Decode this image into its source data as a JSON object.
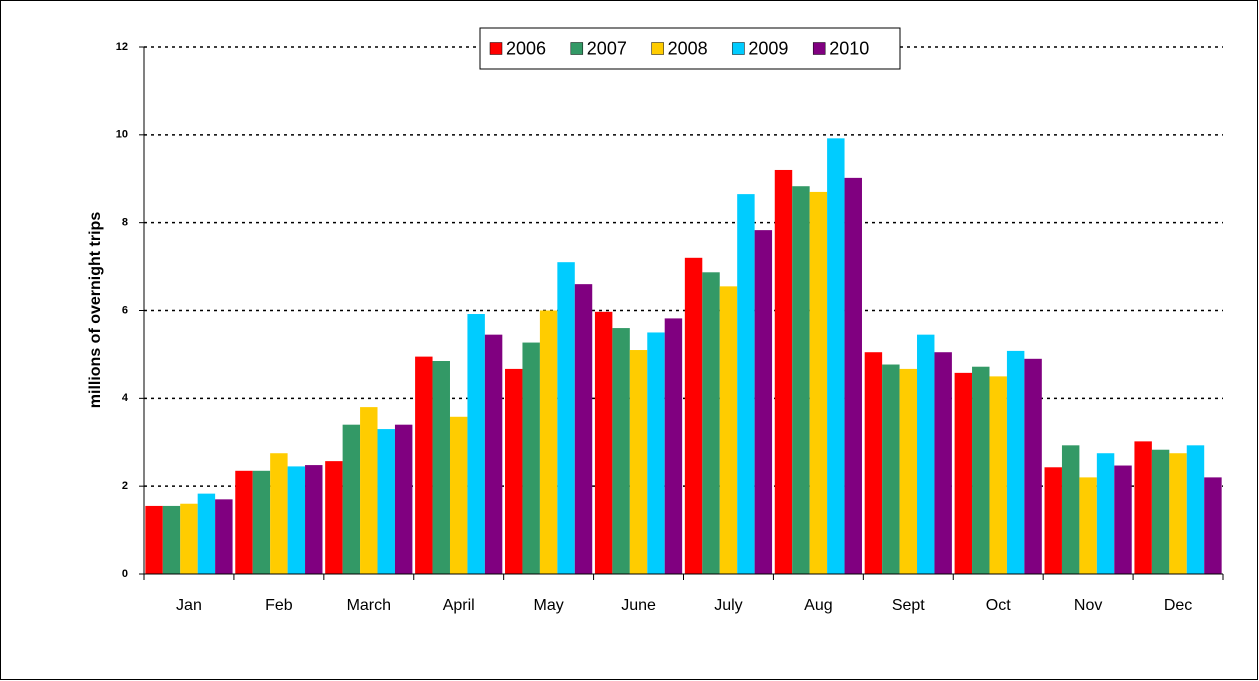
{
  "chart_data": {
    "type": "bar",
    "y_label": "millions of overnight trips",
    "categories": [
      "Jan",
      "Feb",
      "March",
      "April",
      "May",
      "June",
      "July",
      "Aug",
      "Sept",
      "Oct",
      "Nov",
      "Dec"
    ],
    "series": [
      {
        "name": "2006",
        "color": "#ff0000",
        "values": [
          1.55,
          2.35,
          2.57,
          4.95,
          4.67,
          5.97,
          7.2,
          9.2,
          5.05,
          4.58,
          2.43,
          3.02
        ]
      },
      {
        "name": "2007",
        "color": "#339966",
        "values": [
          1.55,
          2.35,
          3.4,
          4.85,
          5.27,
          5.6,
          6.87,
          8.83,
          4.77,
          4.72,
          2.93,
          2.83
        ]
      },
      {
        "name": "2008",
        "color": "#ffcc00",
        "values": [
          1.6,
          2.75,
          3.8,
          3.58,
          6.0,
          5.1,
          6.55,
          8.7,
          4.67,
          4.5,
          2.2,
          2.75
        ]
      },
      {
        "name": "2009",
        "color": "#00ccff",
        "values": [
          1.83,
          2.45,
          3.3,
          5.92,
          7.1,
          5.5,
          8.65,
          9.92,
          5.45,
          5.08,
          2.75,
          2.93
        ]
      },
      {
        "name": "2010",
        "color": "#800080",
        "values": [
          1.7,
          2.48,
          3.4,
          5.45,
          6.6,
          5.82,
          7.83,
          9.02,
          5.05,
          4.9,
          2.47,
          2.2
        ]
      }
    ],
    "ylim": [
      0,
      12
    ],
    "yticks": [
      0,
      2,
      4,
      6,
      8,
      10,
      12
    ],
    "grid": true
  }
}
